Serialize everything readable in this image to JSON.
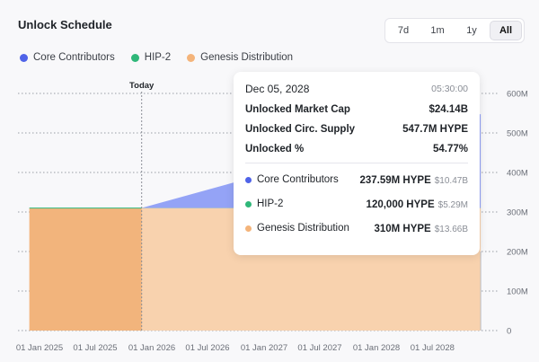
{
  "header": {
    "title": "Unlock Schedule"
  },
  "ranges": [
    {
      "label": "7d",
      "active": false
    },
    {
      "label": "1m",
      "active": false
    },
    {
      "label": "1y",
      "active": false
    },
    {
      "label": "All",
      "active": true
    }
  ],
  "legend": [
    {
      "label": "Core Contributors",
      "color": "#4f63e8"
    },
    {
      "label": "HIP-2",
      "color": "#2fb779"
    },
    {
      "label": "Genesis Distribution",
      "color": "#f4b47a"
    }
  ],
  "tooltip": {
    "date": "Dec 05, 2028",
    "time": "05:30:00",
    "stats": [
      {
        "label": "Unlocked Market Cap",
        "value": "$24.14B"
      },
      {
        "label": "Unlocked Circ. Supply",
        "value": "547.7M HYPE"
      },
      {
        "label": "Unlocked %",
        "value": "54.77%"
      }
    ],
    "series": [
      {
        "label": "Core Contributors",
        "amount": "237.59M HYPE",
        "usd": "$10.47B",
        "color": "#4f63e8"
      },
      {
        "label": "HIP-2",
        "amount": "120,000 HYPE",
        "usd": "$5.29M",
        "color": "#2fb779"
      },
      {
        "label": "Genesis Distribution",
        "amount": "310M HYPE",
        "usd": "$13.66B",
        "color": "#f4b47a"
      }
    ]
  },
  "chart_data": {
    "type": "area",
    "stacked": true,
    "today_label": "Today",
    "x_ticks": [
      "01 Jan 2025",
      "01 Jul 2025",
      "01 Jan 2026",
      "01 Jul 2026",
      "01 Jan 2027",
      "01 Jul 2027",
      "01 Jan 2028",
      "01 Jul 2028"
    ],
    "y_ticks": [
      "0",
      "100M",
      "200M",
      "300M",
      "400M",
      "500M",
      "600M"
    ],
    "ylim": [
      0,
      600
    ],
    "y_unit": "M",
    "grid": true,
    "series": [
      {
        "name": "Genesis Distribution",
        "color": "#f4b47a",
        "x": [
          "2024-11-29",
          "2028-12-05"
        ],
        "y": [
          310,
          310
        ]
      },
      {
        "name": "HIP-2",
        "color": "#2fb779",
        "x": [
          "2024-11-29",
          "2028-12-05"
        ],
        "y": [
          0.12,
          0.12
        ]
      },
      {
        "name": "Core Contributors",
        "color": "#4f63e8",
        "x": [
          "2024-11-29",
          "2025-11-29",
          "2028-12-05"
        ],
        "y": [
          0,
          0,
          237.59
        ]
      }
    ]
  }
}
